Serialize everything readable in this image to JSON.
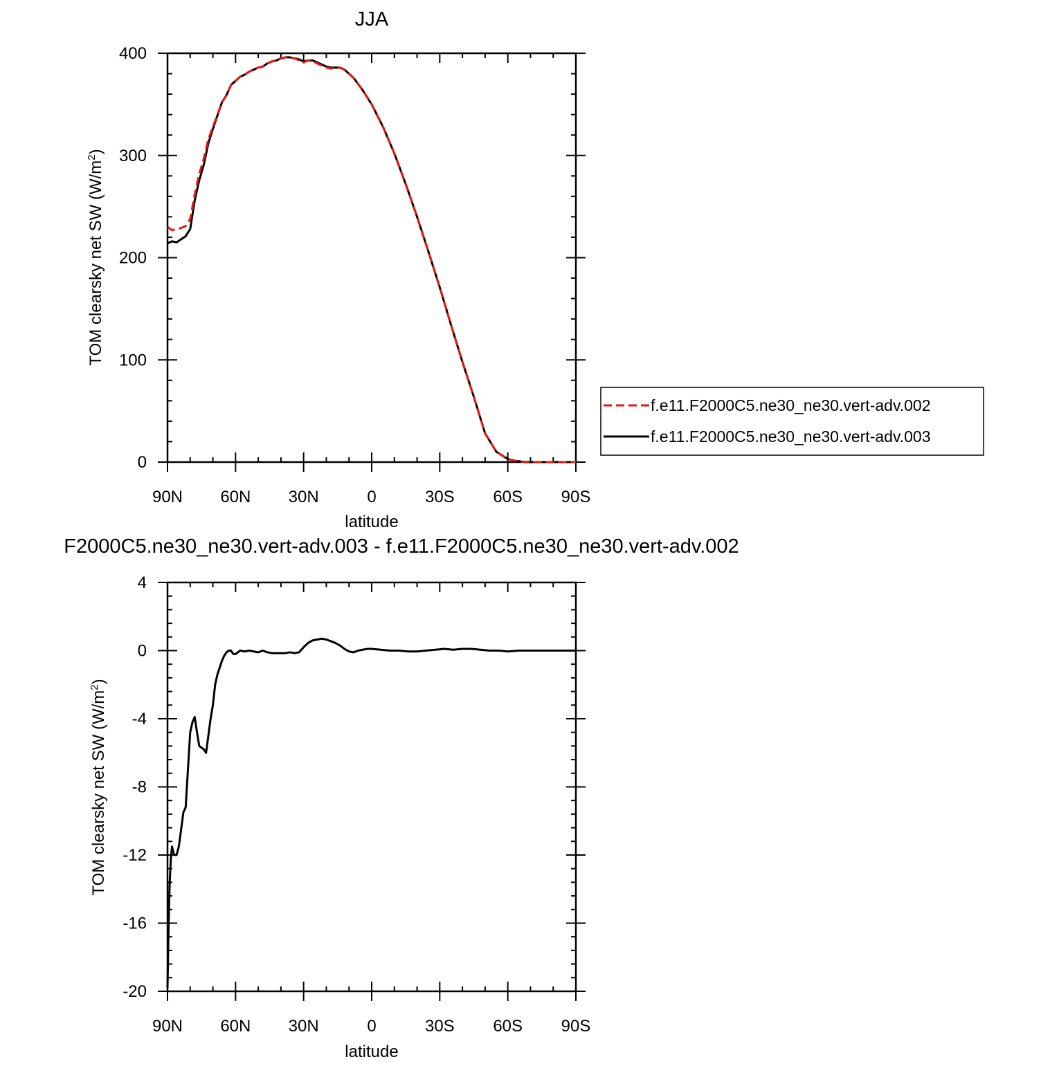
{
  "chart_data": [
    {
      "type": "line",
      "title": "JJA",
      "xlabel": "latitude",
      "ylabel_main": "TOM clearsky net SW (W/m",
      "ylabel_sup": "2",
      "ylabel_tail": ")",
      "xlim": [
        90,
        -90
      ],
      "ylim": [
        0,
        400
      ],
      "x_ticks": [
        90,
        60,
        30,
        0,
        -30,
        -60,
        -90
      ],
      "x_tick_labels": [
        "90N",
        "60N",
        "30N",
        "0",
        "30S",
        "60S",
        "90S"
      ],
      "y_ticks": [
        0,
        100,
        200,
        300,
        400
      ],
      "y_tick_labels": [
        "0",
        "100",
        "200",
        "300",
        "400"
      ],
      "legend_position": "right",
      "x": [
        90,
        88,
        86,
        84,
        82,
        80,
        78,
        76,
        74,
        72,
        70,
        68,
        66,
        64,
        62,
        60,
        58,
        56,
        54,
        52,
        50,
        48,
        46,
        44,
        42,
        40,
        38,
        36,
        34,
        32,
        30,
        28,
        26,
        24,
        22,
        20,
        18,
        16,
        14,
        12,
        10,
        8,
        6,
        4,
        2,
        0,
        -5,
        -10,
        -15,
        -20,
        -25,
        -30,
        -35,
        -40,
        -45,
        -50,
        -55,
        -60,
        -62,
        -64,
        -66,
        -68,
        -70,
        -75,
        -80,
        -85,
        -90
      ],
      "series": [
        {
          "name": "f.e11.F2000C5.ne30_ne30.vert-adv.002",
          "color": "#e8150f",
          "dash": "dashed",
          "values": [
            230,
            227,
            228,
            229,
            231,
            238,
            262,
            282,
            297,
            316,
            328,
            340,
            352,
            359,
            369,
            373,
            377,
            379,
            382,
            384,
            386,
            387,
            390,
            392,
            393,
            395,
            396,
            396,
            395,
            393,
            391,
            393,
            392,
            390,
            388,
            386,
            385,
            386,
            386,
            384,
            380,
            376,
            370,
            364,
            357,
            350,
            328,
            302,
            272,
            240,
            206,
            171,
            134,
            98,
            64,
            28,
            10,
            3,
            2,
            1,
            0.5,
            0.2,
            0,
            0,
            0,
            0,
            0
          ]
        },
        {
          "name": "f.e11.F2000C5.ne30_ne30.vert-adv.003",
          "color": "#000000",
          "dash": "solid",
          "values": [
            214,
            216,
            215,
            218,
            221,
            228,
            256,
            276,
            291,
            312,
            326,
            339,
            352,
            359,
            369,
            373,
            377,
            379,
            382,
            384,
            386,
            387,
            390,
            392,
            393,
            395,
            396,
            396,
            395,
            394,
            392,
            393,
            393,
            391,
            389,
            387,
            386,
            386,
            386,
            384,
            380,
            376,
            370,
            364,
            357,
            350,
            328,
            302,
            272,
            240,
            206,
            171,
            134,
            98,
            64,
            28,
            10,
            3,
            2,
            1,
            0.5,
            0.2,
            0,
            0,
            0,
            0,
            0
          ]
        }
      ]
    },
    {
      "type": "line",
      "title": "F2000C5.ne30_ne30.vert-adv.003 - f.e11.F2000C5.ne30_ne30.vert-adv.002",
      "xlabel": "latitude",
      "ylabel_main": "TOM clearsky net SW (W/m",
      "ylabel_sup": "2",
      "ylabel_tail": ")",
      "xlim": [
        90,
        -90
      ],
      "ylim": [
        -20,
        4
      ],
      "x_ticks": [
        90,
        60,
        30,
        0,
        -30,
        -60,
        -90
      ],
      "x_tick_labels": [
        "90N",
        "60N",
        "30N",
        "0",
        "30S",
        "60S",
        "90S"
      ],
      "y_ticks": [
        -20,
        -16,
        -12,
        -8,
        -4,
        0,
        4
      ],
      "y_tick_labels": [
        "-20",
        "-16",
        "-12",
        "-8",
        "-4",
        "0",
        "4"
      ],
      "x": [
        90,
        89.5,
        89,
        88.5,
        88,
        87.5,
        87,
        86,
        85,
        84,
        83,
        82,
        81,
        80,
        79,
        78,
        77,
        76,
        75,
        74,
        73,
        72,
        71,
        70,
        69,
        68,
        67,
        66,
        65,
        64,
        63,
        62,
        61,
        60,
        58,
        56,
        54,
        52,
        50,
        48,
        46,
        44,
        42,
        40,
        38,
        36,
        34,
        32,
        30,
        28,
        26,
        24,
        22,
        20,
        18,
        16,
        14,
        12,
        10,
        8,
        6,
        4,
        2,
        0,
        -4,
        -8,
        -12,
        -16,
        -20,
        -24,
        -28,
        -32,
        -36,
        -40,
        -44,
        -48,
        -52,
        -56,
        -60,
        -65,
        -70,
        -75,
        -80,
        -85,
        -90
      ],
      "series": [
        {
          "name": "",
          "color": "#000000",
          "dash": "solid",
          "values": [
            -19.8,
            -16,
            -13.5,
            -12.2,
            -11.5,
            -11.8,
            -12,
            -12,
            -11.5,
            -10.5,
            -9.5,
            -9.2,
            -7,
            -4.8,
            -4.2,
            -3.9,
            -4.8,
            -5.6,
            -5.7,
            -5.8,
            -6,
            -5,
            -4,
            -3.2,
            -2,
            -1.4,
            -1,
            -0.6,
            -0.3,
            -0.1,
            0,
            0,
            -0.2,
            -0.2,
            0,
            -0.05,
            0,
            -0.05,
            -0.1,
            0,
            -0.1,
            -0.15,
            -0.15,
            -0.15,
            -0.15,
            -0.1,
            -0.15,
            -0.1,
            0.2,
            0.45,
            0.6,
            0.65,
            0.7,
            0.65,
            0.55,
            0.45,
            0.3,
            0.1,
            -0.05,
            -0.1,
            0,
            0.05,
            0.1,
            0.1,
            0.05,
            0,
            0,
            -0.05,
            -0.05,
            0,
            0.05,
            0.1,
            0.05,
            0.1,
            0.1,
            0.05,
            0,
            0,
            -0.05,
            0,
            0,
            0,
            0,
            0,
            0
          ]
        }
      ]
    }
  ]
}
